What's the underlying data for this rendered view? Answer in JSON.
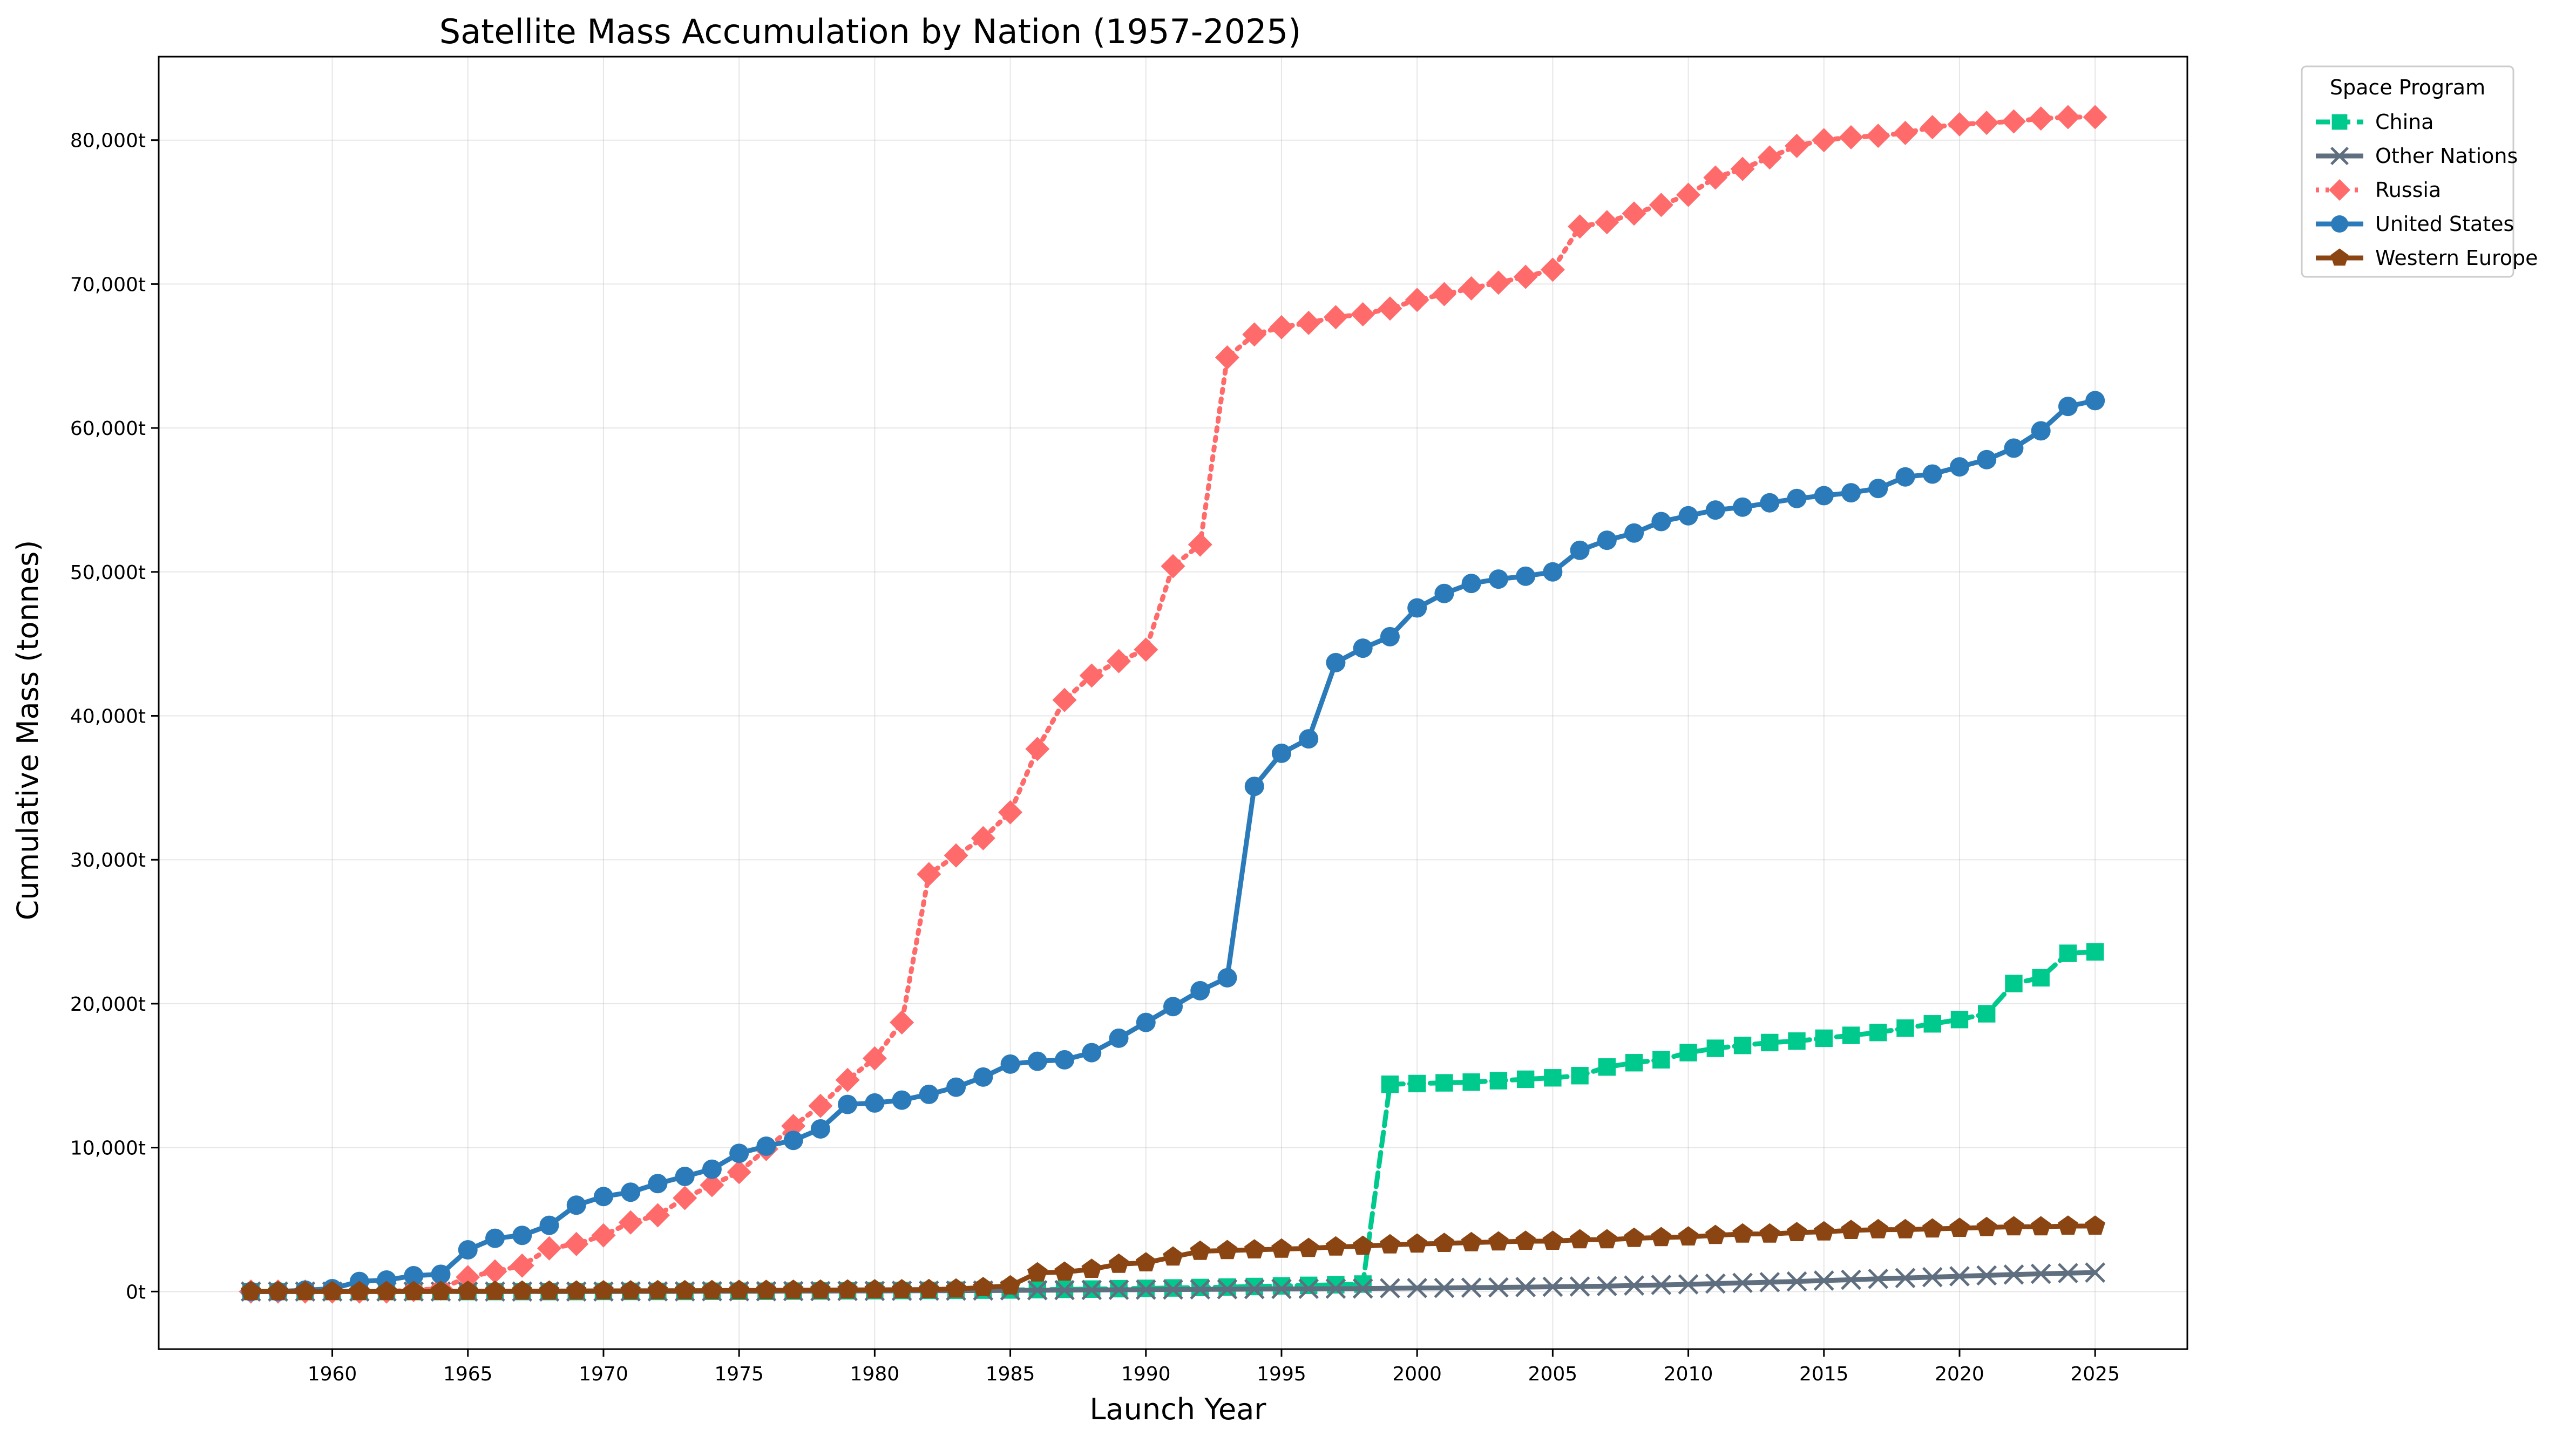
{
  "chart_data": {
    "type": "line",
    "title": "Satellite Mass Accumulation by Nation (1957-2025)",
    "xlabel": "Launch Year",
    "ylabel": "Cumulative Mass (tonnes)",
    "xlim": [
      1953.6,
      2028.4
    ],
    "ylim": [
      -4000,
      85800
    ],
    "xticks": [
      1960,
      1965,
      1970,
      1975,
      1980,
      1985,
      1990,
      1995,
      2000,
      2005,
      2010,
      2015,
      2020,
      2025
    ],
    "yticks": [
      0,
      10000,
      20000,
      30000,
      40000,
      50000,
      60000,
      70000,
      80000
    ],
    "ytick_labels": [
      "0t",
      "10,000t",
      "20,000t",
      "30,000t",
      "40,000t",
      "50,000t",
      "60,000t",
      "70,000t",
      "80,000t"
    ],
    "grid": true,
    "legend": {
      "title": "Space Program",
      "placement": "outside-top-right"
    },
    "x": [
      1957,
      1958,
      1959,
      1960,
      1961,
      1962,
      1963,
      1964,
      1965,
      1966,
      1967,
      1968,
      1969,
      1970,
      1971,
      1972,
      1973,
      1974,
      1975,
      1976,
      1977,
      1978,
      1979,
      1980,
      1981,
      1982,
      1983,
      1984,
      1985,
      1986,
      1987,
      1988,
      1989,
      1990,
      1991,
      1992,
      1993,
      1994,
      1995,
      1996,
      1997,
      1998,
      1999,
      2000,
      2001,
      2002,
      2003,
      2004,
      2005,
      2006,
      2007,
      2008,
      2009,
      2010,
      2011,
      2012,
      2013,
      2014,
      2015,
      2016,
      2017,
      2018,
      2019,
      2020,
      2021,
      2022,
      2023,
      2024,
      2025
    ],
    "series": [
      {
        "name": "China",
        "color": "#00c98d",
        "line_style": "dashed",
        "marker": "square",
        "values": [
          0,
          0,
          0,
          0,
          0,
          0,
          0,
          0,
          0,
          0,
          0,
          0,
          0,
          10,
          10,
          10,
          10,
          20,
          20,
          20,
          30,
          40,
          50,
          60,
          70,
          80,
          90,
          100,
          110,
          130,
          150,
          170,
          200,
          220,
          250,
          280,
          310,
          350,
          390,
          430,
          470,
          520,
          14400,
          14450,
          14500,
          14550,
          14650,
          14750,
          14850,
          15000,
          15600,
          15900,
          16100,
          16600,
          16900,
          17100,
          17300,
          17400,
          17600,
          17800,
          18000,
          18300,
          18600,
          18900,
          19300,
          21400,
          21800,
          23500,
          23600
        ]
      },
      {
        "name": "Other Nations",
        "color": "#5f6f80",
        "line_style": "solid",
        "marker": "x",
        "values": [
          0,
          0,
          0,
          0,
          0,
          0,
          0,
          0,
          0,
          0,
          0,
          0,
          0,
          0,
          10,
          10,
          10,
          20,
          20,
          20,
          30,
          30,
          40,
          40,
          50,
          60,
          60,
          70,
          80,
          90,
          100,
          110,
          120,
          130,
          140,
          150,
          160,
          170,
          180,
          190,
          200,
          210,
          230,
          240,
          250,
          270,
          290,
          310,
          330,
          350,
          380,
          420,
          460,
          500,
          550,
          600,
          650,
          700,
          760,
          820,
          880,
          940,
          1000,
          1060,
          1120,
          1180,
          1230,
          1280,
          1320
        ]
      },
      {
        "name": "Russia",
        "color": "#ff6b6b",
        "line_style": "dotted",
        "marker": "diamond",
        "values": [
          0,
          0,
          0,
          0,
          0,
          0,
          100,
          200,
          1000,
          1400,
          1800,
          3000,
          3300,
          3900,
          4800,
          5300,
          6500,
          7400,
          8300,
          9900,
          11500,
          12900,
          14700,
          16200,
          18700,
          29000,
          30300,
          31500,
          33300,
          37700,
          41100,
          42800,
          43800,
          44600,
          50400,
          51900,
          64900,
          66500,
          67000,
          67300,
          67700,
          67900,
          68300,
          68900,
          69300,
          69700,
          70100,
          70500,
          71000,
          74000,
          74300,
          74900,
          75500,
          76200,
          77400,
          78000,
          78800,
          79600,
          80000,
          80200,
          80300,
          80500,
          80900,
          81100,
          81200,
          81300,
          81500,
          81600,
          81600
        ]
      },
      {
        "name": "United States",
        "color": "#2b7bba",
        "line_style": "solid",
        "marker": "circle",
        "values": [
          0,
          0,
          100,
          200,
          700,
          800,
          1100,
          1200,
          2900,
          3700,
          3900,
          4600,
          6000,
          6600,
          6900,
          7500,
          8000,
          8500,
          9600,
          10100,
          10500,
          11300,
          13000,
          13100,
          13300,
          13700,
          14200,
          14900,
          15800,
          16000,
          16100,
          16600,
          17600,
          18700,
          19800,
          20900,
          21800,
          35100,
          37400,
          38400,
          43700,
          44700,
          45500,
          47500,
          48500,
          49200,
          49500,
          49700,
          50000,
          51500,
          52200,
          52700,
          53500,
          53900,
          54300,
          54500,
          54800,
          55100,
          55300,
          55500,
          55800,
          56600,
          56800,
          57300,
          57800,
          58600,
          59800,
          61500,
          61900
        ]
      },
      {
        "name": "Western Europe",
        "color": "#8b4513",
        "line_style": "solid",
        "marker": "pentagon",
        "values": [
          0,
          0,
          0,
          0,
          0,
          0,
          0,
          10,
          20,
          20,
          30,
          30,
          40,
          50,
          50,
          60,
          60,
          70,
          80,
          80,
          90,
          100,
          110,
          120,
          130,
          140,
          180,
          280,
          400,
          1300,
          1350,
          1550,
          1900,
          2000,
          2400,
          2800,
          2850,
          2900,
          2950,
          3000,
          3100,
          3150,
          3250,
          3300,
          3350,
          3400,
          3450,
          3500,
          3500,
          3600,
          3600,
          3700,
          3750,
          3800,
          3900,
          4000,
          4000,
          4100,
          4150,
          4250,
          4300,
          4300,
          4350,
          4400,
          4450,
          4500,
          4500,
          4550,
          4550
        ]
      }
    ]
  }
}
